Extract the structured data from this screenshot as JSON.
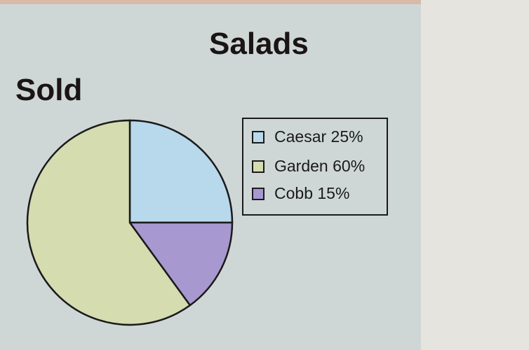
{
  "chart_data": {
    "type": "pie",
    "title": "Salads Sold",
    "title_line1": "Salads",
    "title_line2": "Sold",
    "categories": [
      "Caesar",
      "Garden",
      "Cobb"
    ],
    "values": [
      25,
      60,
      15
    ],
    "unit": "%",
    "colors": [
      "#b8d8ec",
      "#d4dcb0",
      "#a898d0"
    ],
    "legend": {
      "placement": "right",
      "entries": [
        "Caesar 25%",
        "Garden 60%",
        "Cobb 15%"
      ]
    },
    "slice_order": [
      "Caesar",
      "Cobb",
      "Garden"
    ],
    "start": "12 o'clock, clockwise"
  }
}
